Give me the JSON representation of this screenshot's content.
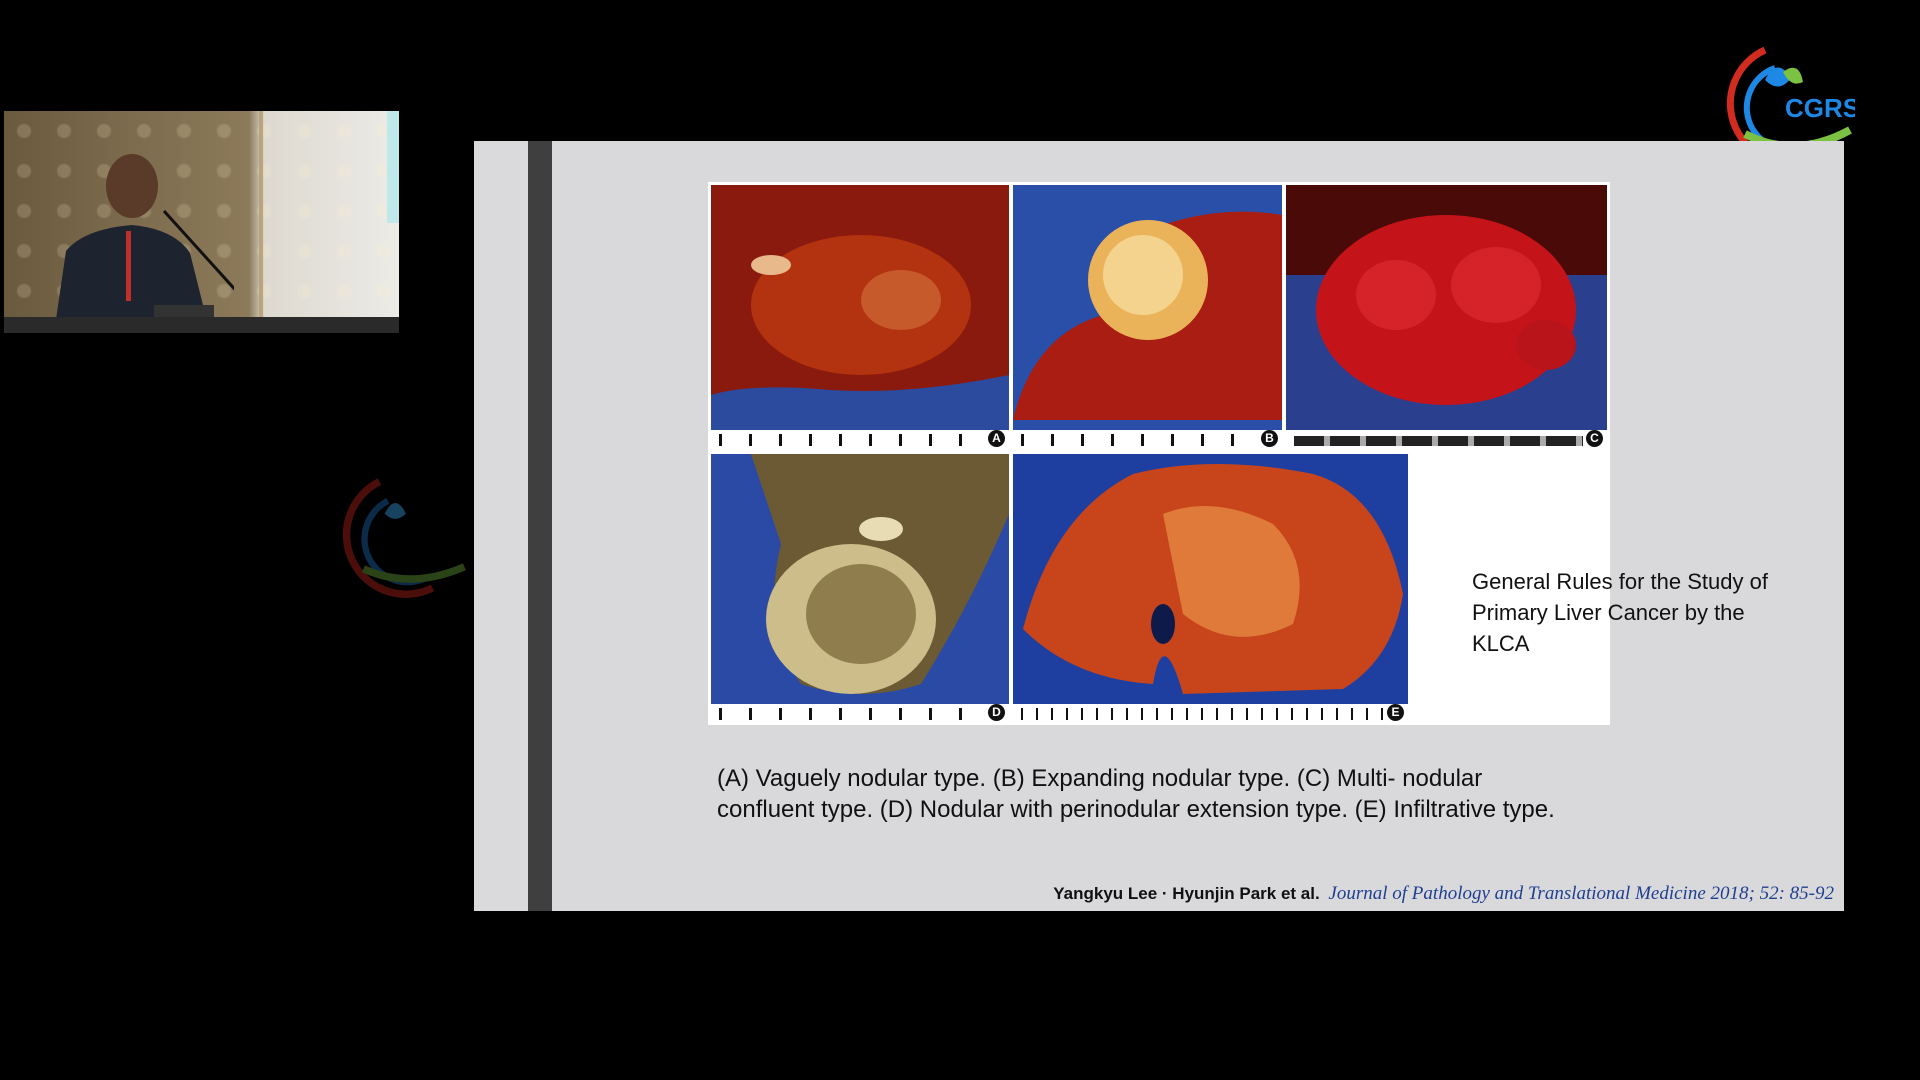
{
  "figure": {
    "panel_labels": [
      "A",
      "B",
      "C",
      "D",
      "E"
    ],
    "note": "General Rules for the Study of Primary Liver Cancer by the KLCA"
  },
  "caption": "(A) Vaguely nodular type. (B) Expanding nodular type. (C) Multi- nodular confluent type. (D) Nodular with perinodular extension type. (E) Infiltrative type.",
  "citation": {
    "authors": "Yangkyu Lee · Hyunjin Park et al.",
    "journal": "Journal of Pathology and Translational Medicine 2018; 52: 85-92"
  },
  "logo": {
    "icon": "cgrs-logo-icon",
    "colors": [
      "#d22b1f",
      "#1e88e5",
      "#7cc242"
    ]
  },
  "video": {
    "icon": "speaker-video-icon"
  }
}
